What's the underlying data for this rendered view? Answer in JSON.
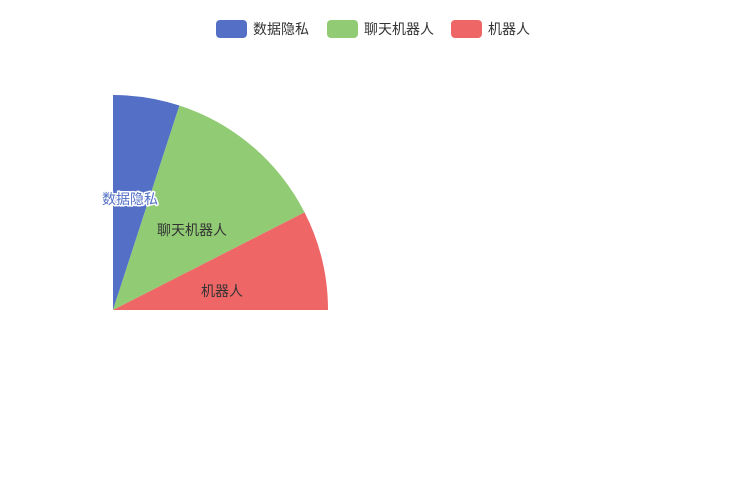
{
  "chart_data": {
    "type": "pie",
    "legend_position": "top-center",
    "start_angle_deg": 90,
    "sweep_deg": 90,
    "slices": [
      {
        "name": "数据隐私",
        "value": 20,
        "color": "#5470c6"
      },
      {
        "name": "聊天机器人",
        "value": 50,
        "color": "#91cc75"
      },
      {
        "name": "机器人",
        "value": 30,
        "color": "#ee6666"
      }
    ]
  }
}
